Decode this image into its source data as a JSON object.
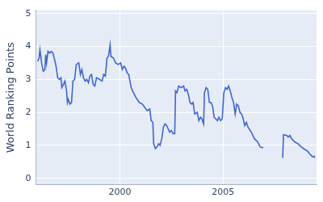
{
  "chart_data": {
    "type": "line",
    "y_label": "World Ranking Points",
    "color": "#4063d8",
    "grid": true,
    "xlim": [
      1995.94,
      2009.53
    ],
    "xticks": [
      2000,
      2005
    ],
    "ylim": [
      -0.2,
      5.1
    ],
    "yticks": [
      0,
      1,
      2,
      3,
      4,
      5
    ],
    "x": [
      1996.02,
      1996.09,
      1996.13,
      1996.21,
      1996.29,
      1996.37,
      1996.41,
      1996.45,
      1996.52,
      1996.6,
      1996.68,
      1996.76,
      1996.84,
      1996.91,
      1996.99,
      1997.07,
      1997.15,
      1997.19,
      1997.27,
      1997.34,
      1997.42,
      1997.46,
      1997.5,
      1997.58,
      1997.66,
      1997.73,
      1997.81,
      1997.89,
      1998.01,
      1998.09,
      1998.16,
      1998.24,
      1998.32,
      1998.4,
      1998.48,
      1998.55,
      1998.63,
      1998.71,
      1998.79,
      1998.87,
      1999.02,
      1999.14,
      1999.22,
      1999.3,
      1999.38,
      1999.45,
      1999.53,
      1999.57,
      1999.69,
      1999.8,
      1999.92,
      2000.04,
      2000.12,
      2000.2,
      2000.27,
      2000.35,
      2000.43,
      2000.55,
      2000.66,
      2000.78,
      2000.94,
      2001.09,
      2001.21,
      2001.33,
      2001.45,
      2001.52,
      2001.6,
      2001.64,
      2001.72,
      2001.8,
      2001.88,
      2001.95,
      2002.03,
      2002.11,
      2002.19,
      2002.27,
      2002.34,
      2002.42,
      2002.5,
      2002.58,
      2002.66,
      2002.7,
      2002.77,
      2002.85,
      2002.97,
      2003.09,
      2003.16,
      2003.24,
      2003.32,
      2003.4,
      2003.48,
      2003.55,
      2003.63,
      2003.75,
      2003.83,
      2003.91,
      2003.98,
      2004.06,
      2004.1,
      2004.18,
      2004.26,
      2004.34,
      2004.41,
      2004.49,
      2004.57,
      2004.65,
      2004.73,
      2004.8,
      2004.88,
      2004.96,
      2005.04,
      2005.12,
      2005.2,
      2005.27,
      2005.35,
      2005.43,
      2005.51,
      2005.59,
      2005.66,
      2005.74,
      2005.82,
      2005.9,
      2005.98,
      2006.05,
      2006.13,
      2006.21,
      2006.37,
      2006.52,
      2006.68,
      2006.8,
      2006.95,
      2007.4,
      2007.89,
      2007.93,
      2008.09,
      2008.16,
      2008.24,
      2008.32,
      2008.48,
      2008.63,
      2008.79,
      2008.95,
      2009.1,
      2009.18,
      2009.26,
      2009.34,
      2009.41,
      2009.45
    ],
    "values": [
      3.55,
      3.65,
      3.9,
      3.5,
      3.25,
      3.3,
      3.75,
      3.5,
      3.85,
      3.8,
      3.85,
      3.8,
      3.6,
      3.4,
      3.05,
      3.0,
      3.05,
      2.75,
      2.85,
      2.95,
      2.65,
      2.3,
      2.4,
      2.25,
      2.3,
      2.95,
      3.0,
      3.45,
      3.5,
      3.15,
      3.3,
      3.05,
      2.95,
      3.0,
      2.9,
      3.1,
      3.15,
      2.85,
      2.8,
      3.05,
      3.0,
      2.95,
      3.15,
      3.1,
      3.65,
      3.7,
      4.05,
      3.7,
      3.65,
      3.5,
      3.45,
      3.5,
      3.3,
      3.4,
      3.35,
      3.2,
      3.15,
      2.75,
      2.6,
      2.45,
      2.3,
      2.25,
      2.15,
      2.05,
      2.1,
      1.75,
      1.7,
      1.05,
      0.9,
      0.95,
      1.05,
      1.0,
      1.2,
      1.55,
      1.65,
      1.6,
      1.5,
      1.4,
      1.45,
      1.35,
      1.35,
      2.65,
      2.6,
      2.8,
      2.75,
      2.8,
      2.65,
      2.7,
      2.55,
      2.3,
      2.25,
      2.3,
      1.95,
      2.0,
      1.75,
      1.85,
      1.8,
      1.65,
      2.6,
      2.75,
      2.7,
      2.3,
      2.3,
      2.2,
      1.85,
      1.8,
      1.75,
      1.85,
      1.75,
      1.8,
      2.6,
      2.75,
      2.7,
      2.8,
      2.65,
      2.45,
      2.3,
      1.95,
      2.25,
      2.2,
      2.0,
      1.95,
      1.8,
      1.6,
      1.7,
      1.55,
      1.4,
      1.2,
      1.1,
      0.95,
      0.92,
      null,
      0.62,
      1.32,
      1.3,
      1.25,
      1.3,
      1.2,
      1.1,
      1.05,
      0.95,
      0.88,
      0.82,
      0.75,
      0.7,
      0.65,
      0.67,
      0.62
    ]
  }
}
